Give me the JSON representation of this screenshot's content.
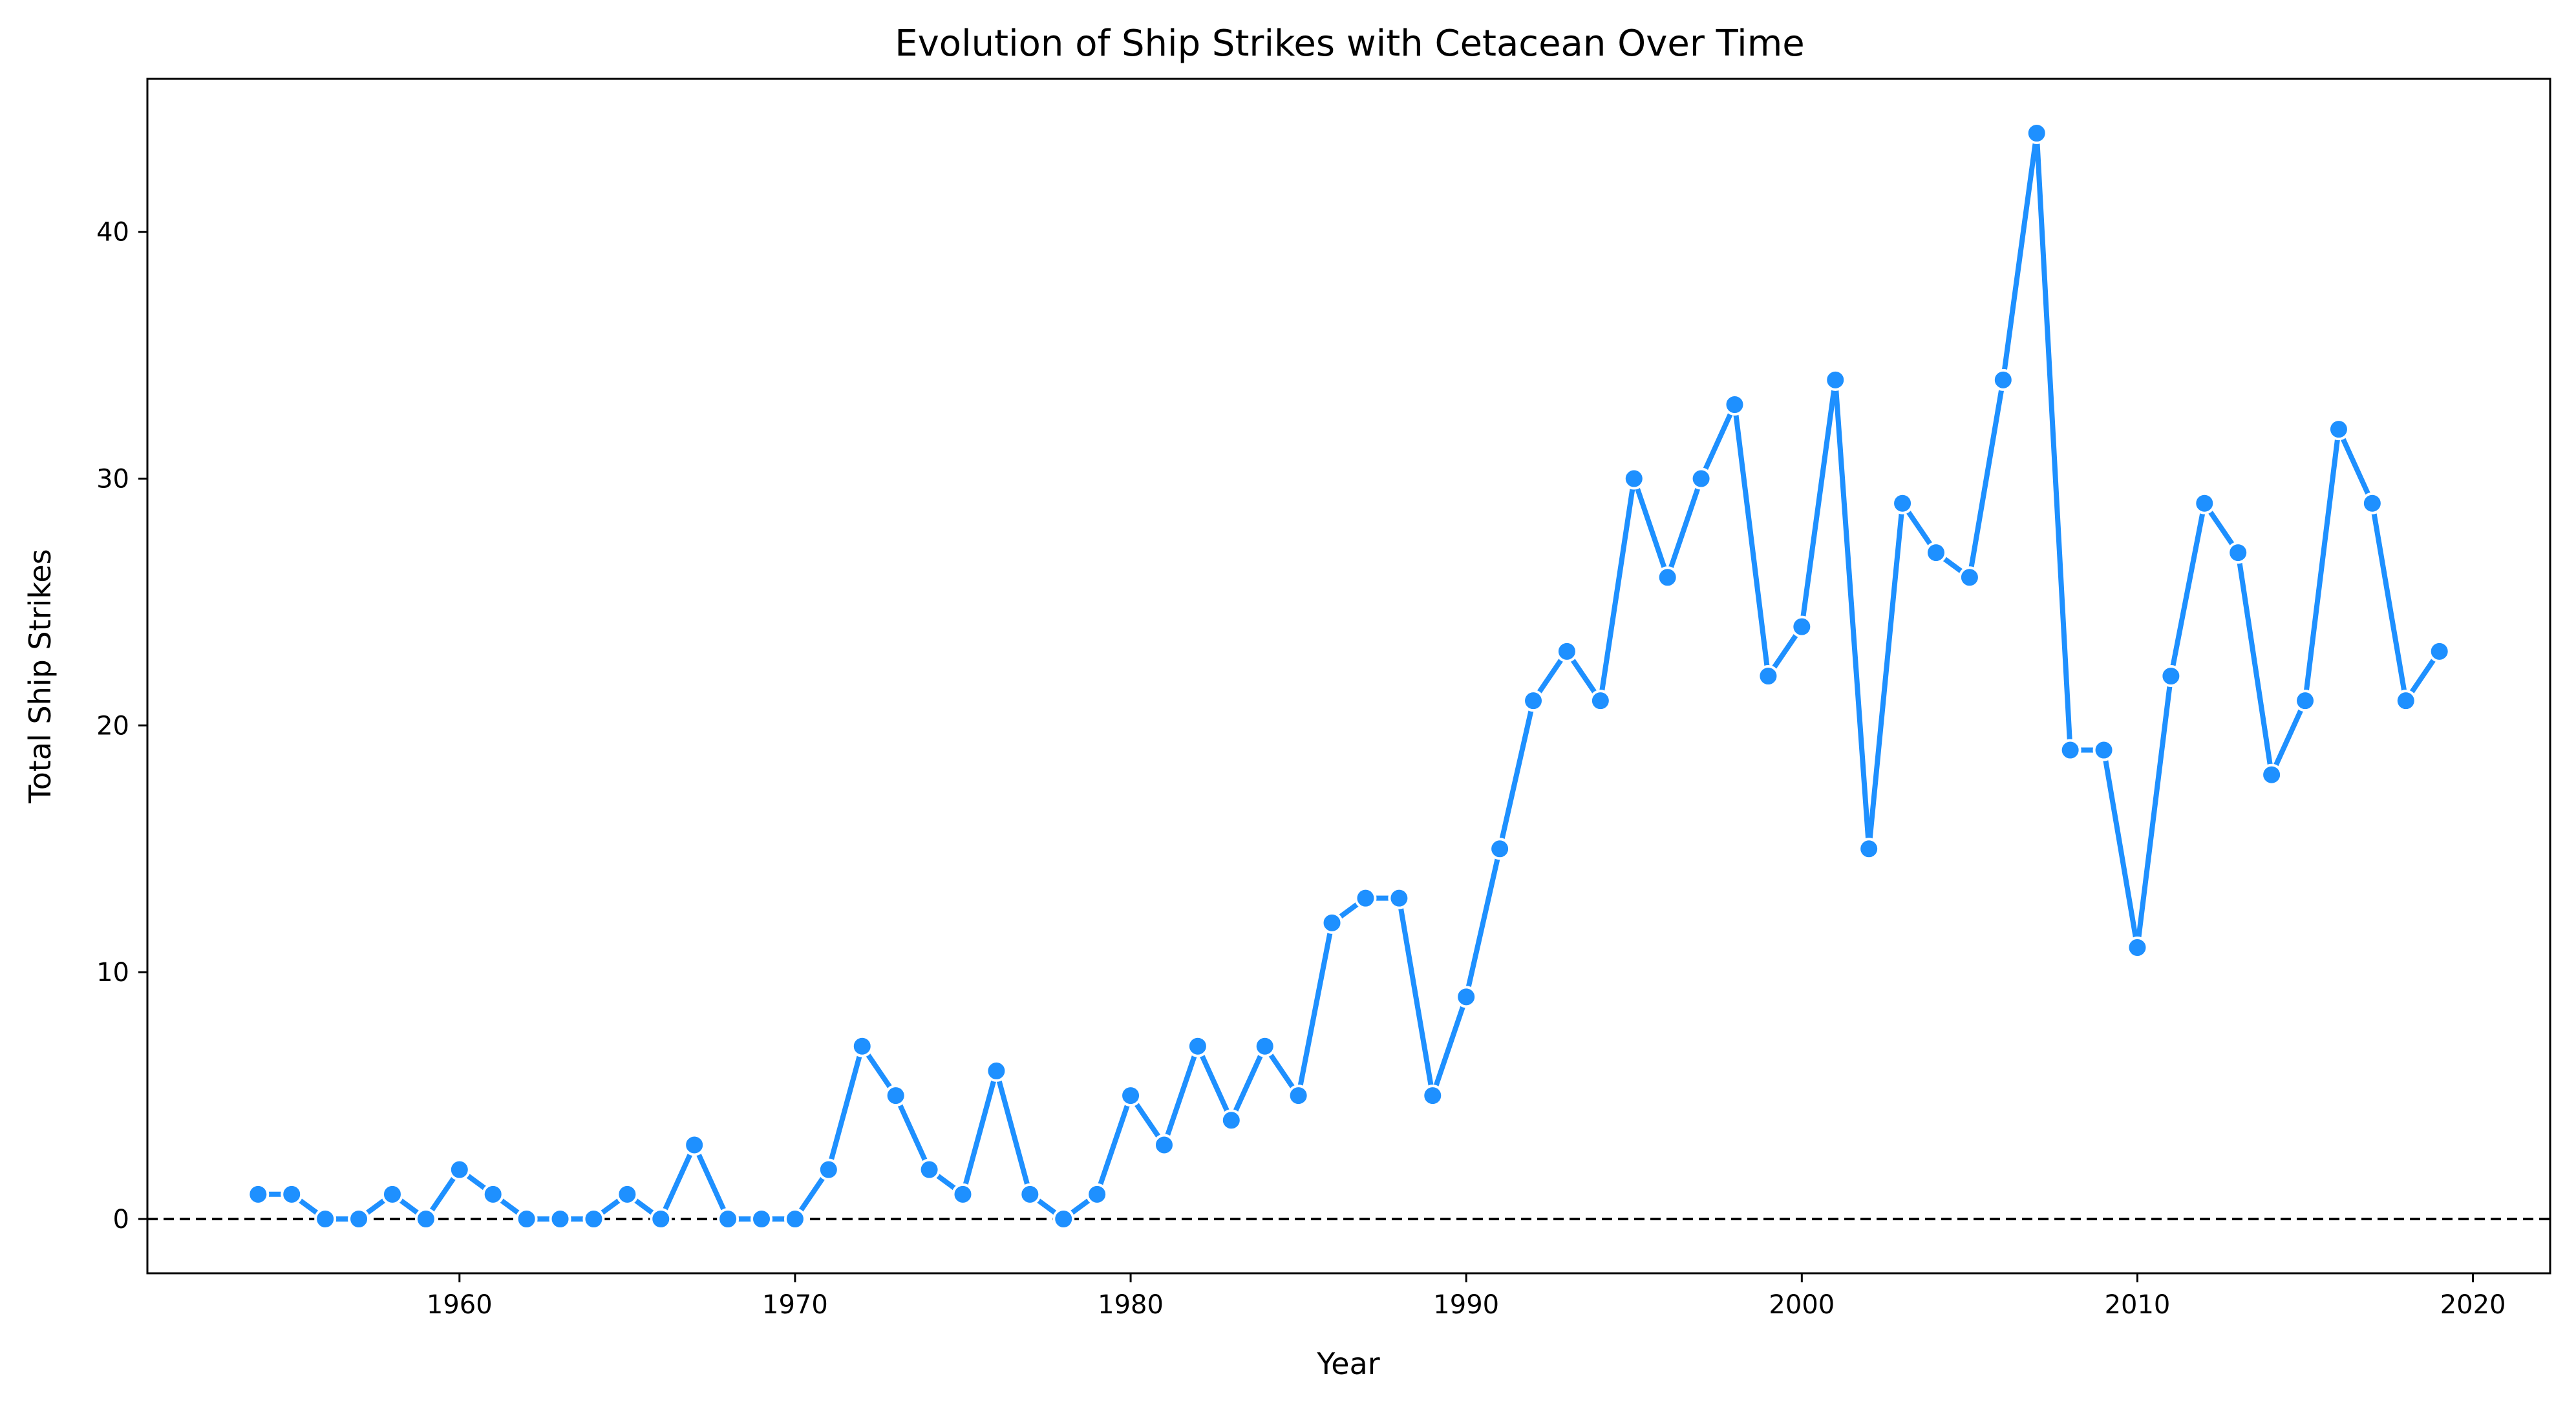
{
  "chart_data": {
    "type": "line",
    "title": "Evolution of Ship Strikes with Cetacean Over Time",
    "xlabel": "Year",
    "ylabel": "Total Ship Strikes",
    "xlim": [
      1950.7,
      2022.3
    ],
    "ylim": [
      -2.2,
      46.2
    ],
    "xticks": [
      1960,
      1970,
      1980,
      1990,
      2000,
      2010,
      2020
    ],
    "yticks": [
      0,
      10,
      20,
      30,
      40
    ],
    "grid": false,
    "reference_line": {
      "y": 0,
      "style": "dashed",
      "color": "#000000"
    },
    "series": [
      {
        "color": "#1E90FF",
        "marker": "circle",
        "x": [
          1954,
          1955,
          1956,
          1957,
          1958,
          1959,
          1960,
          1961,
          1962,
          1963,
          1964,
          1965,
          1966,
          1967,
          1968,
          1969,
          1970,
          1971,
          1972,
          1973,
          1974,
          1975,
          1976,
          1977,
          1978,
          1979,
          1980,
          1981,
          1982,
          1983,
          1984,
          1985,
          1986,
          1987,
          1988,
          1989,
          1990,
          1991,
          1992,
          1993,
          1994,
          1995,
          1996,
          1997,
          1998,
          1999,
          2000,
          2001,
          2002,
          2003,
          2004,
          2005,
          2006,
          2007,
          2008,
          2009,
          2010,
          2011,
          2012,
          2013,
          2014,
          2015,
          2016,
          2017,
          2018,
          2019
        ],
        "y": [
          1,
          1,
          0,
          0,
          1,
          0,
          2,
          1,
          0,
          0,
          0,
          1,
          0,
          3,
          0,
          0,
          0,
          2,
          7,
          5,
          2,
          1,
          6,
          1,
          0,
          1,
          5,
          3,
          7,
          4,
          7,
          5,
          12,
          13,
          13,
          5,
          9,
          15,
          21,
          23,
          21,
          30,
          26,
          30,
          33,
          22,
          24,
          34,
          15,
          29,
          27,
          26,
          34,
          44,
          19,
          19,
          11,
          22,
          29,
          27,
          18,
          21,
          32,
          29,
          21,
          23
        ]
      }
    ]
  }
}
